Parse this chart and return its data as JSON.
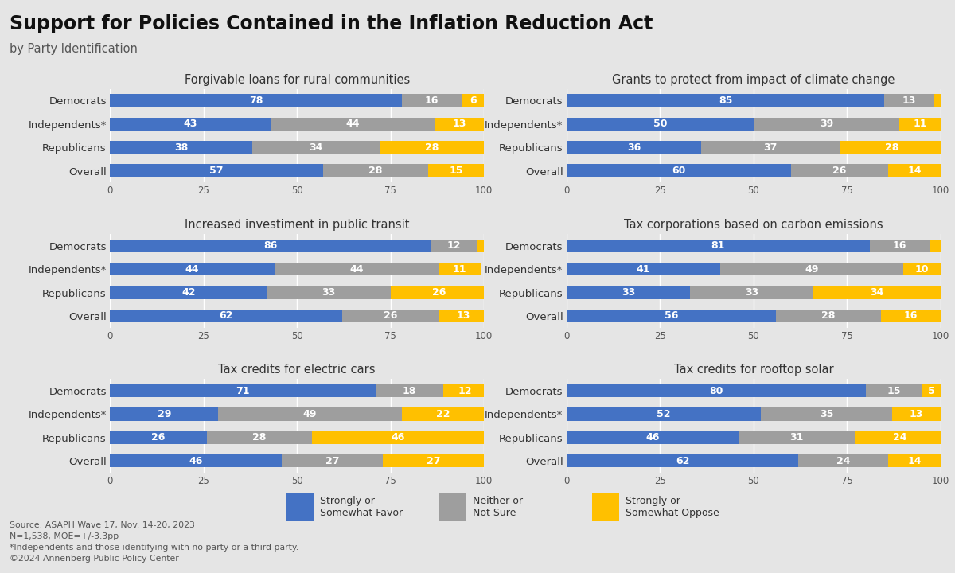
{
  "title": "Support for Policies Contained in the Inflation Reduction Act",
  "subtitle": "by Party Identification",
  "background_color": "#e5e5e5",
  "favor_color": "#4472c4",
  "neither_color": "#9e9e9e",
  "oppose_color": "#ffc000",
  "categories": [
    "Democrats",
    "Independents*",
    "Republicans",
    "Overall"
  ],
  "charts": [
    {
      "title": "Forgivable loans for rural communities",
      "favor": [
        78,
        43,
        38,
        57
      ],
      "neither": [
        16,
        44,
        34,
        28
      ],
      "oppose": [
        6,
        13,
        28,
        15
      ]
    },
    {
      "title": "Grants to protect from impact of climate change",
      "favor": [
        85,
        50,
        36,
        60
      ],
      "neither": [
        13,
        39,
        37,
        26
      ],
      "oppose": [
        3,
        11,
        28,
        14
      ]
    },
    {
      "title": "Increased investiment in public transit",
      "favor": [
        86,
        44,
        42,
        62
      ],
      "neither": [
        12,
        44,
        33,
        26
      ],
      "oppose": [
        2,
        11,
        26,
        13
      ]
    },
    {
      "title": "Tax corporations based on carbon emissions",
      "favor": [
        81,
        41,
        33,
        56
      ],
      "neither": [
        16,
        49,
        33,
        28
      ],
      "oppose": [
        3,
        10,
        34,
        16
      ]
    },
    {
      "title": "Tax credits for electric cars",
      "favor": [
        71,
        29,
        26,
        46
      ],
      "neither": [
        18,
        49,
        28,
        27
      ],
      "oppose": [
        12,
        22,
        46,
        27
      ]
    },
    {
      "title": "Tax credits for rooftop solar",
      "favor": [
        80,
        52,
        46,
        62
      ],
      "neither": [
        15,
        35,
        31,
        24
      ],
      "oppose": [
        5,
        13,
        24,
        14
      ]
    }
  ],
  "legend_items": [
    {
      "label": "Strongly or\nSomewhat Favor",
      "color": "#4472c4"
    },
    {
      "label": "Neither or\nNot Sure",
      "color": "#9e9e9e"
    },
    {
      "label": "Strongly or\nSomewhat Oppose",
      "color": "#ffc000"
    }
  ],
  "source_text": "Source: ASAPH Wave 17, Nov. 14-20, 2023\nN=1,538, MOE=+/-3.3pp\n*Independents and those identifying with no party or a third party.\n©2024 Annenberg Public Policy Center",
  "xlim": [
    0,
    100
  ],
  "xticks": [
    0,
    25,
    50,
    75,
    100
  ]
}
